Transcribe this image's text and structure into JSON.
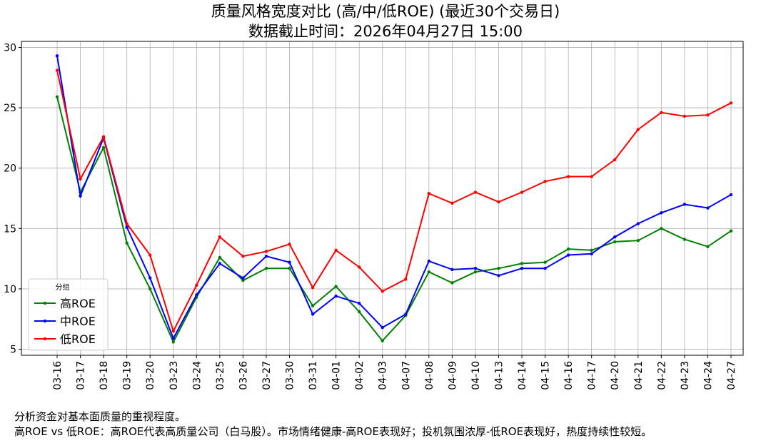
{
  "chart_data": {
    "type": "line",
    "title": "质量风格宽度对比 (高/中/低ROE) (最近30个交易日)",
    "subtitle": "数据截止时间：2026年04月27日 15:00",
    "xlabel": "",
    "ylabel": "",
    "ylim": [
      4.5,
      30.5
    ],
    "yticks": [
      5,
      10,
      15,
      20,
      25,
      30
    ],
    "grid": true,
    "legend_title": "分组",
    "legend_position": "lower-left",
    "categories": [
      "03-16",
      "03-17",
      "03-18",
      "03-19",
      "03-20",
      "03-23",
      "03-24",
      "03-25",
      "03-26",
      "03-27",
      "03-30",
      "03-31",
      "04-01",
      "04-02",
      "04-03",
      "04-07",
      "04-08",
      "04-09",
      "04-10",
      "04-13",
      "04-14",
      "04-15",
      "04-16",
      "04-17",
      "04-20",
      "04-21",
      "04-22",
      "04-23",
      "04-24",
      "04-27"
    ],
    "series": [
      {
        "name": "高ROE",
        "color": "#008000",
        "values": [
          25.9,
          18.0,
          21.7,
          13.8,
          10.0,
          5.6,
          9.3,
          12.6,
          10.7,
          11.7,
          11.7,
          8.6,
          10.2,
          8.1,
          5.7,
          7.8,
          11.4,
          10.5,
          11.4,
          11.7,
          12.1,
          12.2,
          13.3,
          13.2,
          13.9,
          14.0,
          15.0,
          14.1,
          13.5,
          14.8
        ]
      },
      {
        "name": "中ROE",
        "color": "#0000ff",
        "values": [
          29.3,
          17.7,
          22.5,
          15.1,
          10.9,
          5.9,
          9.5,
          12.1,
          10.9,
          12.7,
          12.2,
          7.9,
          9.4,
          8.8,
          6.8,
          7.9,
          12.3,
          11.6,
          11.7,
          11.1,
          11.7,
          11.7,
          12.8,
          12.9,
          14.3,
          15.4,
          16.3,
          17.0,
          16.7,
          17.8
        ]
      },
      {
        "name": "低ROE",
        "color": "#ff0000",
        "values": [
          28.1,
          19.1,
          22.6,
          15.4,
          12.8,
          6.5,
          10.3,
          14.3,
          12.7,
          13.1,
          13.7,
          10.1,
          13.2,
          11.8,
          9.8,
          10.8,
          17.9,
          17.1,
          18.0,
          17.2,
          18.0,
          18.9,
          19.3,
          19.3,
          20.7,
          23.2,
          24.6,
          24.3,
          24.4,
          25.4
        ]
      }
    ]
  },
  "notes": {
    "line1": "分析资金对基本面质量的重视程度。",
    "line2": "高ROE vs 低ROE：高ROE代表高质量公司（白马股）。市场情绪健康-高ROE表现好；投机氛围浓厚-低ROE表现好，热度持续性较短。"
  }
}
